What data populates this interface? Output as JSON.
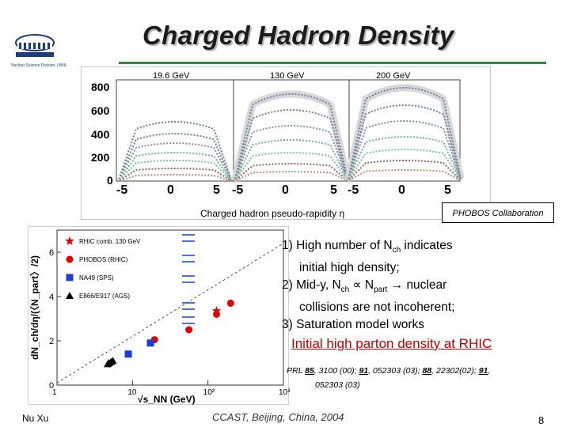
{
  "header": {
    "title": "Charged Hadron Density",
    "logo_caption": "Nuclear Science Division, LBNL",
    "accent_color": "#2e8b3e"
  },
  "top_figure": {
    "panel_labels": [
      "19.6 GeV",
      "130 GeV",
      "200 GeV"
    ],
    "y_ticks": [
      "0",
      "200",
      "400",
      "600",
      "800"
    ],
    "x_ticks": [
      "-5",
      "0",
      "5"
    ],
    "x_label": "Charged hadron pseudo-rapidity η",
    "collaboration": "PHOBOS Collaboration"
  },
  "chart_data": {
    "type": "scatter",
    "y_label": "dN_ch/dη/(〈N_part〉/2)",
    "x_label": "√s_NN (GeV)",
    "x_ticks": [
      "1",
      "10",
      "10²",
      "10³"
    ],
    "y_ticks": [
      "0",
      "2",
      "4",
      "6"
    ],
    "x_scale": "log",
    "xlim": [
      1,
      1000
    ],
    "ylim": [
      0,
      7
    ],
    "legend": [
      {
        "label": "RHIC comb. 130 GeV",
        "marker": "star",
        "color": "#e00000"
      },
      {
        "label": "PHOBOS (RHIC)",
        "marker": "circle",
        "color": "#e00000"
      },
      {
        "label": "NA49 (SPS)",
        "marker": "square",
        "color": "#1a3fd0"
      },
      {
        "label": "E866/E917 (AGS)",
        "marker": "triangle",
        "color": "#000000"
      }
    ],
    "series": [
      {
        "name": "RHIC comb. 130 GeV",
        "points": [
          [
            130,
            3.35
          ]
        ]
      },
      {
        "name": "PHOBOS (RHIC)",
        "points": [
          [
            19.6,
            2.05
          ],
          [
            56,
            2.5
          ],
          [
            130,
            3.2
          ],
          [
            200,
            3.7
          ]
        ]
      },
      {
        "name": "NA49 (SPS)",
        "points": [
          [
            8.8,
            1.4
          ],
          [
            17.3,
            1.9
          ]
        ]
      },
      {
        "name": "E866/E917 (AGS)",
        "points": [
          [
            4.7,
            0.95
          ],
          [
            4.9,
            1.0
          ],
          [
            5.2,
            1.05
          ],
          [
            5.5,
            1.1
          ]
        ]
      }
    ],
    "fit_line": [
      [
        1,
        0.1
      ],
      [
        1000,
        6.4
      ]
    ]
  },
  "bullets": [
    {
      "main": "1) High number of  N",
      "sub": "ch",
      "rest": " indicates",
      "cont": "initial high density;"
    },
    {
      "main": "2) Mid-y, N",
      "sub": "ch",
      "rest": " ∝ N",
      "sub2": "part",
      "rest2": " → nuclear",
      "cont": "collisions are not incoherent;"
    },
    {
      "main": "3) Saturation model works",
      "sub": "",
      "rest": "",
      "cont": ""
    }
  ],
  "conclusion": "Initial high parton density at RHIC",
  "refs": {
    "line1_a": "PRL ",
    "v1": "85",
    "line1_b": ", 3100 (00); ",
    "v2": "91",
    "line1_c": ", 052303 (03); ",
    "v3": "88",
    "line1_d": ", 22302(02); ",
    "v4": "91",
    "line1_e": ",",
    "line2": "052303 (03)"
  },
  "footer": {
    "author": "Nu Xu",
    "venue": "CCAST, Beijing, China, 2004",
    "page": "8"
  }
}
